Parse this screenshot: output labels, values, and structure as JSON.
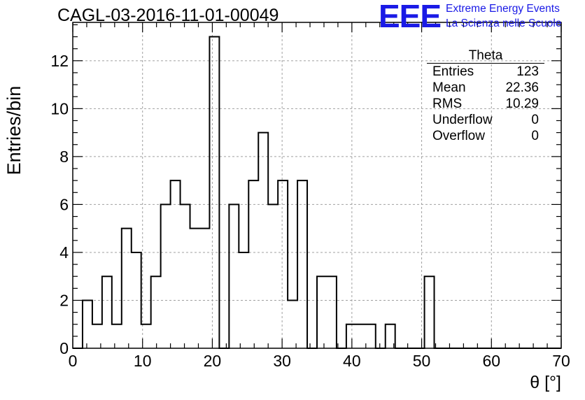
{
  "title": "CAGL-03-2016-11-01-00049",
  "logo": {
    "mark": "EEE",
    "line1": "Extreme Energy Events",
    "line2": "La Scienza nelle Scuole"
  },
  "stats_box": {
    "title": "Theta",
    "rows": [
      {
        "label": "Entries",
        "value": "123"
      },
      {
        "label": "Mean",
        "value": "22.36"
      },
      {
        "label": "RMS",
        "value": "10.29"
      },
      {
        "label": "Underflow",
        "value": "0"
      },
      {
        "label": "Overflow",
        "value": "0"
      }
    ]
  },
  "chart_data": {
    "type": "histogram",
    "xlabel": "θ [°]",
    "ylabel": "Entries/bin",
    "xlim": [
      0,
      70
    ],
    "ylim": [
      0,
      13.6
    ],
    "grid": true,
    "bin_width": 1.4,
    "bin_start": 0,
    "counts": [
      0,
      2,
      1,
      3,
      1,
      5,
      4,
      1,
      3,
      6,
      7,
      6,
      5,
      5,
      13,
      0,
      6,
      4,
      7,
      9,
      6,
      7,
      2,
      7,
      0,
      3,
      3,
      0,
      1,
      1,
      1,
      0,
      1,
      0,
      0,
      0,
      3,
      0,
      0,
      0,
      0,
      0,
      0,
      0,
      0,
      0,
      0,
      0,
      0,
      0
    ],
    "x_ticks": [
      0,
      10,
      20,
      30,
      40,
      50,
      60,
      70
    ],
    "y_ticks": [
      0,
      2,
      4,
      6,
      8,
      10,
      12
    ],
    "colors": {
      "line": "#000000",
      "grid": "#a0a0a0",
      "logo": "#1a1ae6"
    }
  }
}
